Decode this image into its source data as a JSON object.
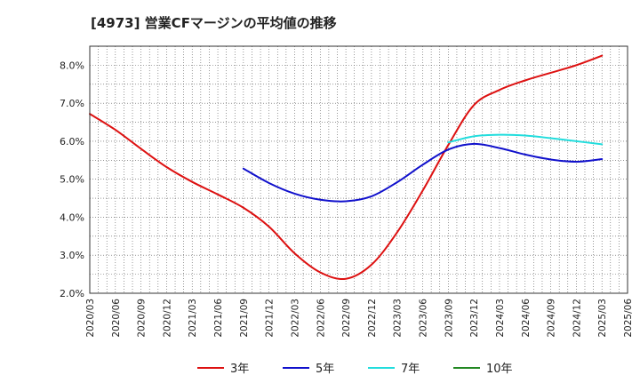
{
  "chart_data": {
    "type": "line",
    "title": "[4973]  営業CFマージンの平均値の推移",
    "xlabel": "",
    "ylabel": "",
    "x_ticks": [
      "2020/03",
      "2020/06",
      "2020/09",
      "2020/12",
      "2021/03",
      "2021/06",
      "2021/09",
      "2021/12",
      "2022/03",
      "2022/06",
      "2022/09",
      "2022/12",
      "2023/03",
      "2023/06",
      "2023/09",
      "2023/12",
      "2024/03",
      "2024/06",
      "2024/09",
      "2024/12",
      "2025/03",
      "2025/06"
    ],
    "y_ticks": [
      "2.0%",
      "3.0%",
      "4.0%",
      "5.0%",
      "6.0%",
      "7.0%",
      "8.0%"
    ],
    "ylim": [
      2.0,
      8.5
    ],
    "grid": true,
    "legend_position": "bottom",
    "series": [
      {
        "name": "3年",
        "color": "#dd1111",
        "x": [
          "2020/03",
          "2020/06",
          "2020/09",
          "2020/12",
          "2021/03",
          "2021/06",
          "2021/09",
          "2021/12",
          "2022/03",
          "2022/06",
          "2022/09",
          "2022/12",
          "2023/03",
          "2023/06",
          "2023/09",
          "2023/12",
          "2024/03",
          "2024/06",
          "2024/09",
          "2024/12",
          "2025/03"
        ],
        "values": [
          6.72,
          6.3,
          5.8,
          5.32,
          4.93,
          4.6,
          4.25,
          3.75,
          3.05,
          2.55,
          2.38,
          2.75,
          3.6,
          4.7,
          5.9,
          6.95,
          7.35,
          7.6,
          7.8,
          8.0,
          8.25
        ]
      },
      {
        "name": "5年",
        "color": "#1111cc",
        "x": [
          "2021/09",
          "2021/12",
          "2022/03",
          "2022/06",
          "2022/09",
          "2022/12",
          "2023/03",
          "2023/06",
          "2023/09",
          "2023/12",
          "2024/03",
          "2024/06",
          "2024/09",
          "2024/12",
          "2025/03"
        ],
        "values": [
          5.28,
          4.9,
          4.62,
          4.46,
          4.42,
          4.55,
          4.92,
          5.38,
          5.78,
          5.93,
          5.82,
          5.65,
          5.52,
          5.46,
          5.53
        ]
      },
      {
        "name": "7年",
        "color": "#22dddd",
        "x": [
          "2023/09",
          "2023/12",
          "2024/03",
          "2024/06",
          "2024/09",
          "2024/12",
          "2025/03"
        ],
        "values": [
          5.97,
          6.13,
          6.17,
          6.15,
          6.08,
          6.0,
          5.92
        ]
      },
      {
        "name": "10年",
        "color": "#228822",
        "x": [],
        "values": []
      }
    ]
  }
}
